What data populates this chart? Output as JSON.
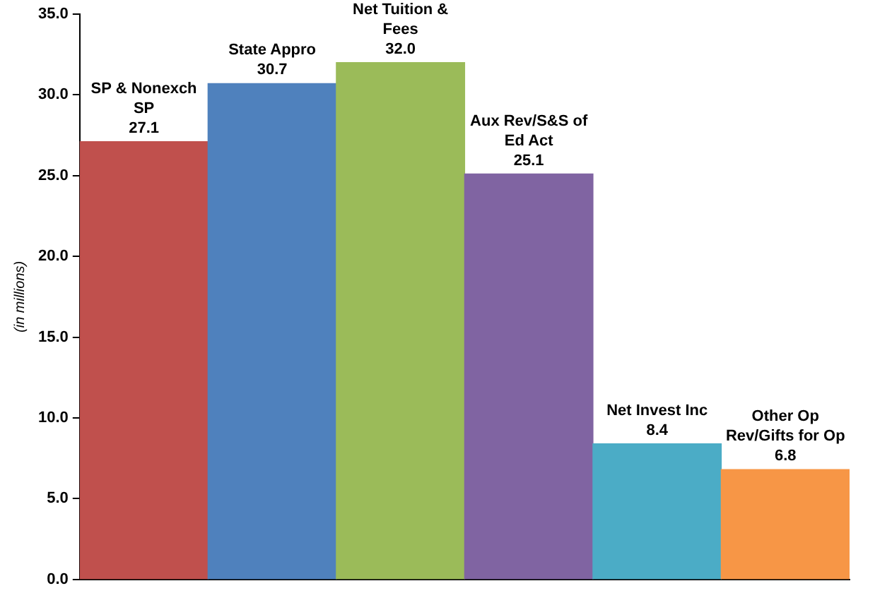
{
  "chart_data": {
    "type": "bar",
    "ylabel": "(in millions)",
    "categories": [
      "SP & Nonexch SP",
      "State Appro",
      "Net Tuition & Fees",
      "Aux Rev/S&S of Ed Act",
      "Net Invest Inc",
      "Other Op Rev/Gifts for Op"
    ],
    "values": [
      27.1,
      30.7,
      32.0,
      25.1,
      8.4,
      6.8
    ],
    "value_labels": [
      "27.1",
      "30.7",
      "32.0",
      "25.1",
      "8.4",
      "6.8"
    ],
    "colors": [
      "#c0504d",
      "#4f81bd",
      "#9bbb59",
      "#8064a2",
      "#4bacc6",
      "#f79646"
    ],
    "ylim": [
      0,
      35
    ],
    "yticks": [
      {
        "value": 0,
        "label": "0.0"
      },
      {
        "value": 5,
        "label": "5.0"
      },
      {
        "value": 10,
        "label": "10.0"
      },
      {
        "value": 15,
        "label": "15.0"
      },
      {
        "value": 20,
        "label": "20.0"
      },
      {
        "value": 25,
        "label": "25.0"
      },
      {
        "value": 30,
        "label": "30.0"
      },
      {
        "value": 35,
        "label": "35.0"
      }
    ],
    "tick_labels": "y",
    "grid": false,
    "legend": false
  }
}
